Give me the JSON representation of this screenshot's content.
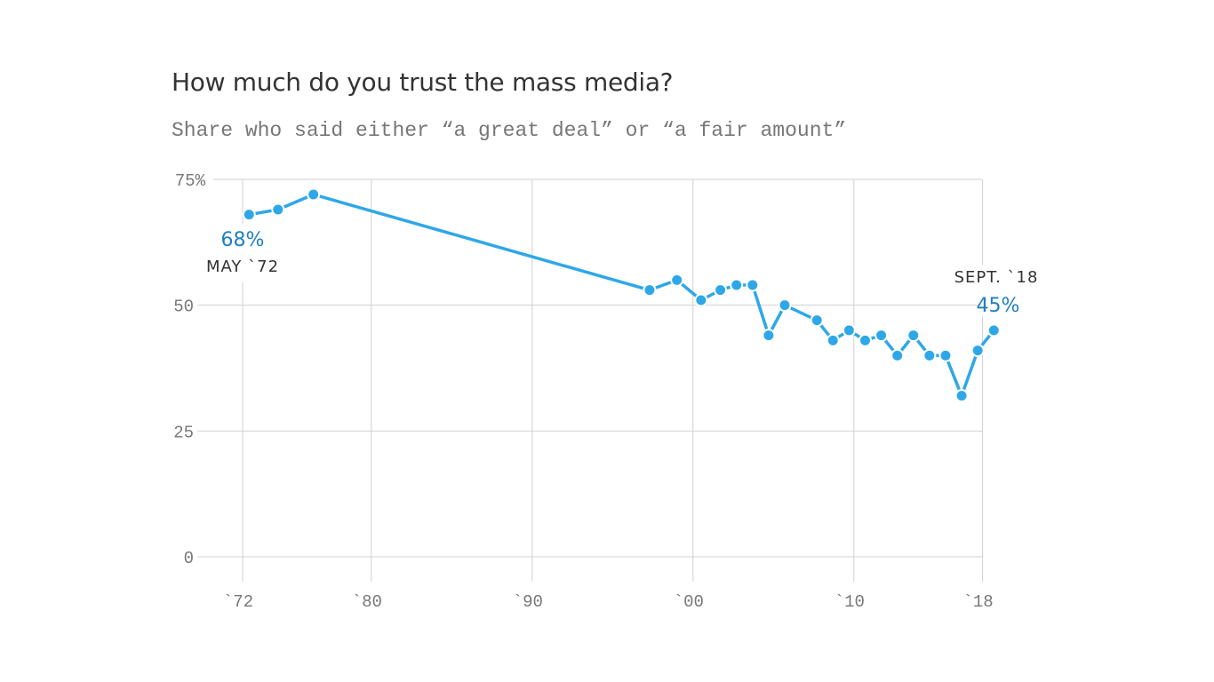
{
  "chart_data": {
    "type": "line",
    "title": "How much do you trust the mass media?",
    "subtitle": "Share who said either “a great deal” or “a fair amount”",
    "xlabel": "",
    "ylabel": "",
    "xlim": [
      1969,
      2019
    ],
    "ylim": [
      0,
      75
    ],
    "x_ticks": [
      1972,
      1980,
      1990,
      2000,
      2010,
      2018
    ],
    "x_tick_labels": [
      "`72",
      "`80",
      "`90",
      "`00",
      "`10",
      "`18"
    ],
    "y_ticks": [
      0,
      25,
      50,
      75
    ],
    "y_tick_labels": [
      "0",
      "25",
      "50",
      "75%"
    ],
    "grid": true,
    "color": "#2ea7e8",
    "x": [
      1972.4,
      1974.2,
      1976.4,
      1997.3,
      1999.0,
      2000.5,
      2001.7,
      2002.7,
      2003.7,
      2004.7,
      2005.7,
      2007.7,
      2008.7,
      2009.7,
      2010.7,
      2011.7,
      2012.7,
      2013.7,
      2014.7,
      2015.7,
      2016.7,
      2017.7,
      2018.7
    ],
    "y": [
      68,
      69,
      72,
      53,
      55,
      51,
      53,
      54,
      54,
      44,
      50,
      47,
      43,
      45,
      43,
      44,
      40,
      44,
      40,
      40,
      32,
      41,
      45
    ],
    "annotations": [
      {
        "value": "68%",
        "date": "MAY `72"
      },
      {
        "value": "45%",
        "date": "SEPT. `18"
      }
    ]
  }
}
